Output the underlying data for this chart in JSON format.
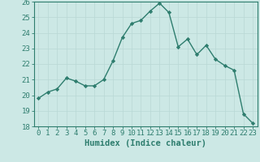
{
  "x": [
    0,
    1,
    2,
    3,
    4,
    5,
    6,
    7,
    8,
    9,
    10,
    11,
    12,
    13,
    14,
    15,
    16,
    17,
    18,
    19,
    20,
    21,
    22,
    23
  ],
  "y": [
    19.8,
    20.2,
    20.4,
    21.1,
    20.9,
    20.6,
    20.6,
    21.0,
    22.2,
    23.7,
    24.6,
    24.8,
    25.4,
    25.9,
    25.3,
    23.1,
    23.6,
    22.6,
    23.2,
    22.3,
    21.9,
    21.6,
    18.8,
    18.2
  ],
  "xlabel": "Humidex (Indice chaleur)",
  "ylim": [
    18,
    26
  ],
  "xlim": [
    -0.5,
    23.5
  ],
  "yticks": [
    18,
    19,
    20,
    21,
    22,
    23,
    24,
    25,
    26
  ],
  "xticks": [
    0,
    1,
    2,
    3,
    4,
    5,
    6,
    7,
    8,
    9,
    10,
    11,
    12,
    13,
    14,
    15,
    16,
    17,
    18,
    19,
    20,
    21,
    22,
    23
  ],
  "line_color": "#2e7d6e",
  "marker": "D",
  "marker_size": 2.2,
  "bg_color": "#cce8e5",
  "grid_color": "#b8d8d5",
  "axis_color": "#2e7d6e",
  "tick_label_color": "#2e7d6e",
  "xlabel_color": "#2e7d6e",
  "xlabel_fontsize": 7.5,
  "tick_fontsize": 6.5,
  "linewidth": 1.0
}
